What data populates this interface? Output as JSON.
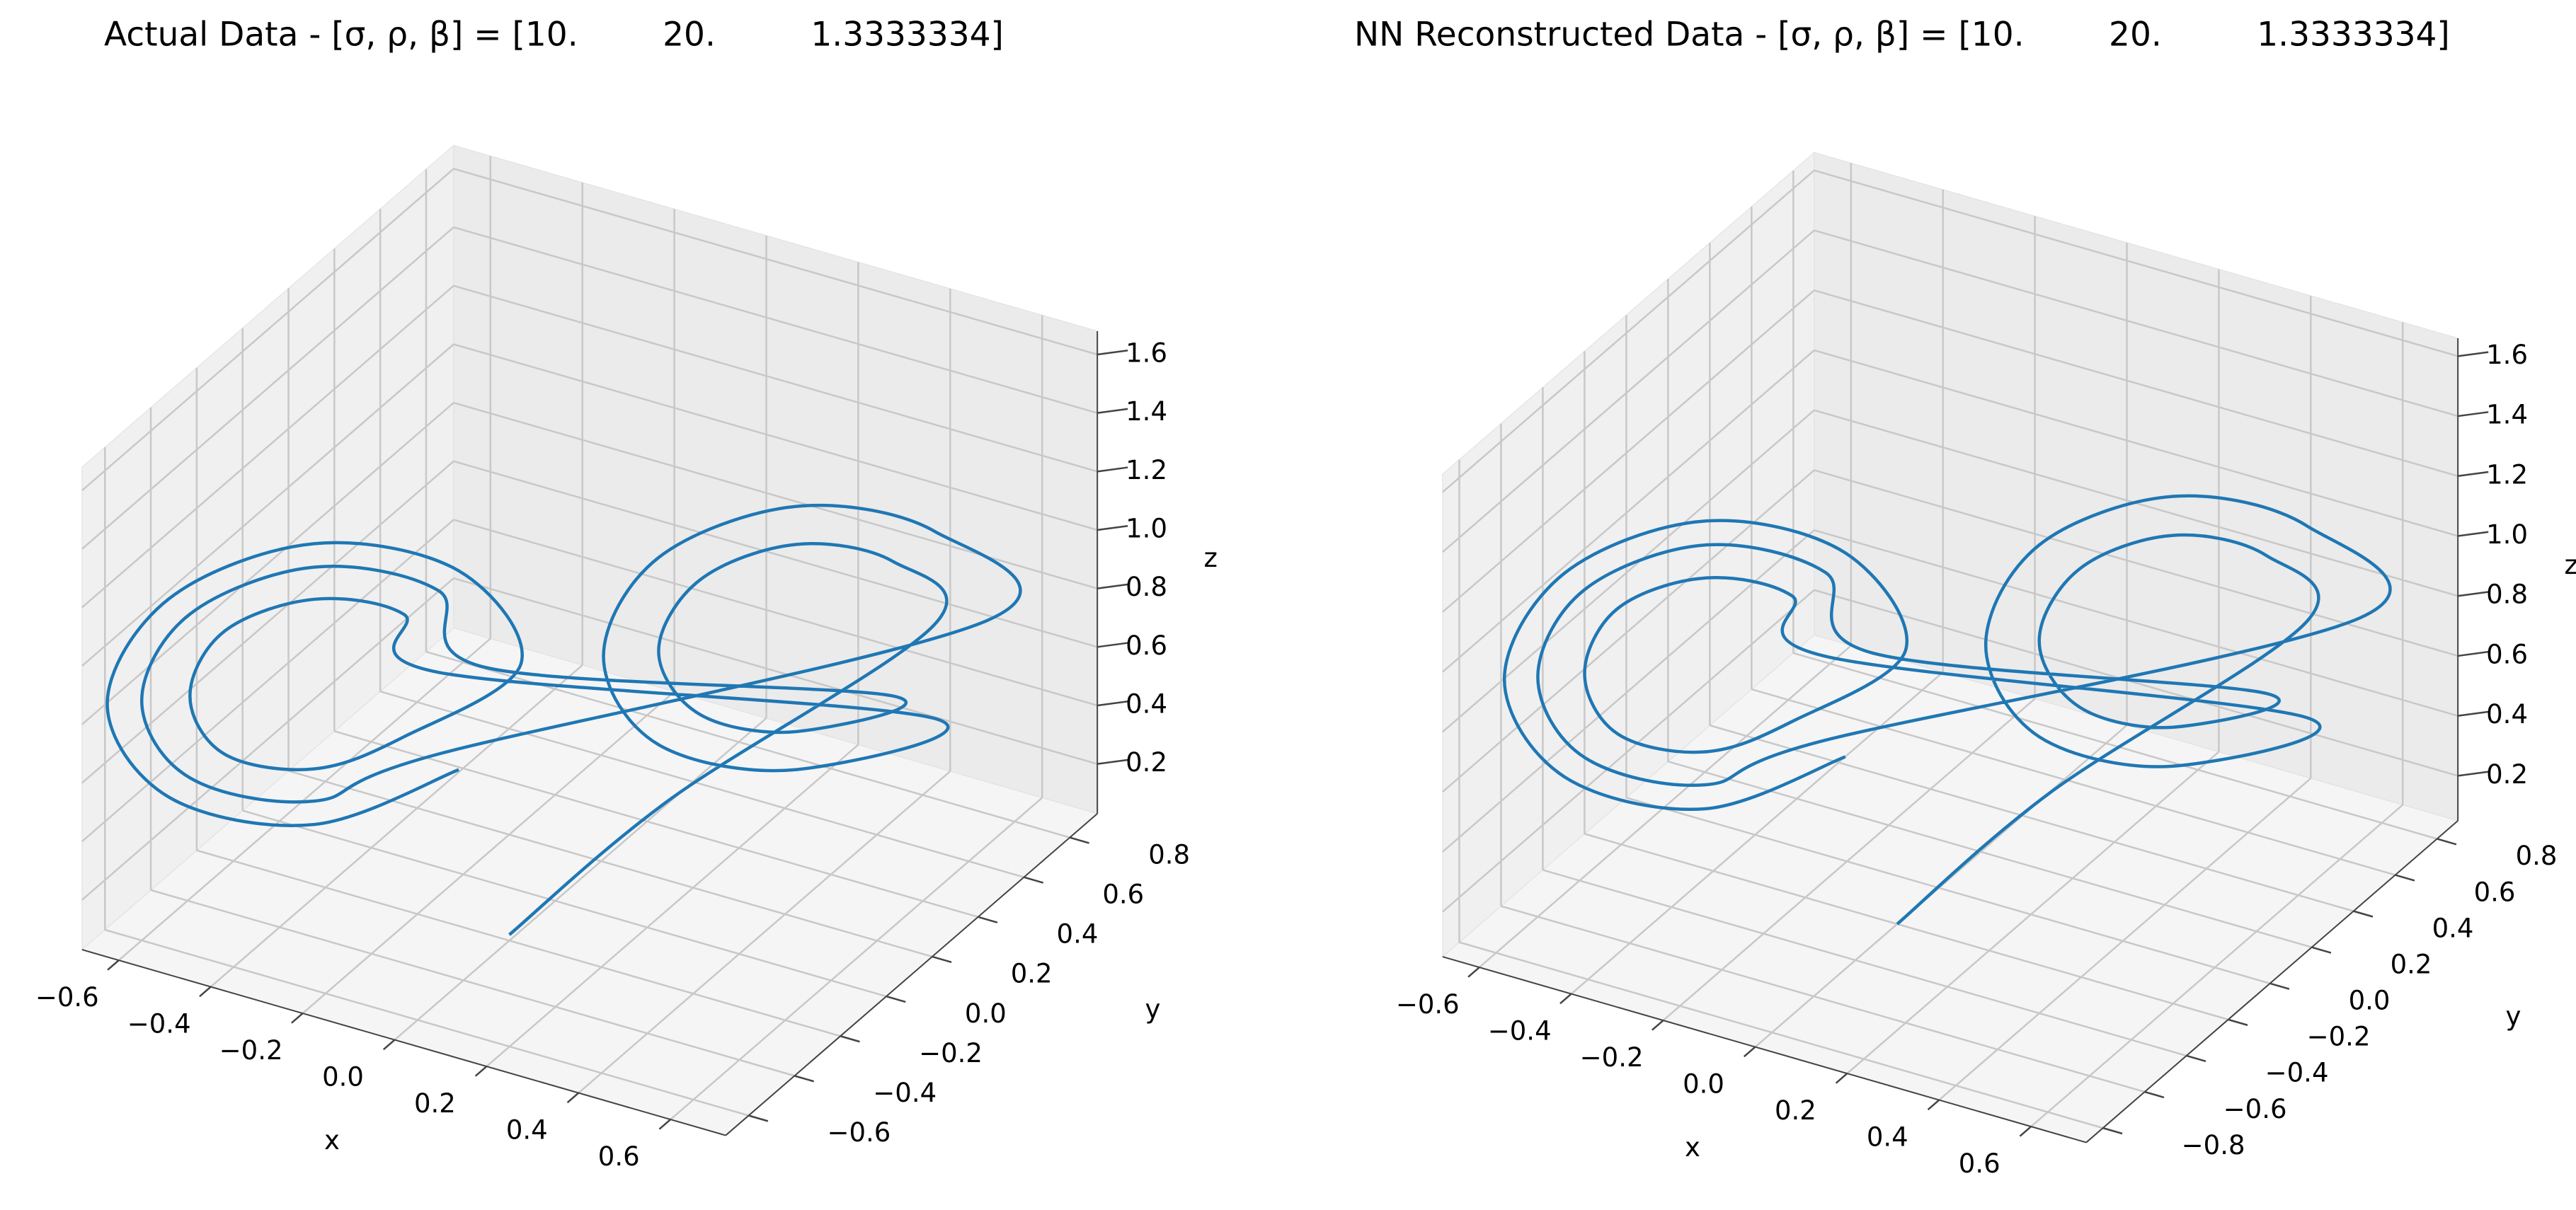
{
  "chart_data": [
    {
      "type": "line3d",
      "title": "Actual Data - [σ, ρ, β] = [10.        20.         1.3333334]",
      "xlabel": "x",
      "ylabel": "y",
      "zlabel": "z",
      "color": "#1f77b4",
      "xlim": [
        -0.68,
        0.72
      ],
      "ylim": [
        -0.7,
        0.92
      ],
      "zlim": [
        0.03,
        1.68
      ],
      "xticks": [
        {
          "value": -0.6,
          "label": "−0.6"
        },
        {
          "value": -0.4,
          "label": "−0.4"
        },
        {
          "value": -0.2,
          "label": "−0.2"
        },
        {
          "value": 0,
          "label": "0.0"
        },
        0.2,
        0.4,
        0.6
      ],
      "yticks": [
        {
          "value": -0.6,
          "label": "−0.6"
        },
        {
          "value": -0.4,
          "label": "−0.4"
        },
        {
          "value": -0.2,
          "label": "−0.2"
        },
        {
          "value": 0,
          "label": "0.0"
        },
        0.2,
        0.4,
        0.6,
        0.8
      ],
      "zticks": [
        0.2,
        0.4,
        0.6,
        0.8,
        {
          "value": 1,
          "label": "1.0"
        },
        1.2,
        1.4,
        1.6
      ],
      "x": [
        0.0,
        0.2,
        0.55,
        0.49,
        0.35,
        0.21,
        0.15,
        0.21,
        0.35,
        0.49,
        -0.1,
        -0.17,
        -0.35,
        -0.53,
        -0.6,
        -0.53,
        -0.35,
        -0.17,
        0.63,
        0.55,
        0.35,
        0.15,
        0.07,
        0.15,
        0.35,
        0.55,
        -0.17,
        -0.22,
        -0.35,
        -0.48,
        -0.53,
        -0.48,
        -0.35,
        -0.22,
        -0.05,
        -0.14,
        -0.35,
        -0.56,
        -0.65,
        -0.56,
        -0.35,
        -0.14
      ],
      "y": [
        -0.2,
        0.1,
        0.55,
        0.49,
        0.35,
        0.21,
        0.15,
        0.21,
        0.35,
        0.49,
        -0.1,
        -0.17,
        -0.35,
        -0.53,
        -0.6,
        -0.53,
        -0.35,
        -0.17,
        0.63,
        0.55,
        0.35,
        0.15,
        0.07,
        0.15,
        0.35,
        0.55,
        -0.17,
        -0.22,
        -0.35,
        -0.48,
        -0.53,
        -0.48,
        -0.35,
        -0.22,
        -0.05,
        -0.14,
        -0.35,
        -0.56,
        -0.65,
        -0.56,
        -0.35,
        -0.14
      ],
      "z": [
        0.05,
        0.4,
        0.85,
        1.08,
        1.17,
        1.08,
        0.85,
        0.62,
        0.53,
        0.62,
        0.85,
        1.13,
        1.25,
        1.13,
        0.85,
        0.57,
        0.45,
        0.57,
        0.85,
        1.17,
        1.3,
        1.17,
        0.85,
        0.53,
        0.4,
        0.53,
        0.85,
        1.06,
        1.14,
        1.06,
        0.85,
        0.64,
        0.56,
        0.64,
        0.85,
        1.19,
        1.33,
        1.19,
        0.85,
        0.51,
        0.37,
        0.51
      ]
    },
    {
      "type": "line3d",
      "title": "NN Reconstructed Data - [σ, ρ, β] = [10.        20.         1.3333334]",
      "xlabel": "x",
      "ylabel": "y",
      "zlabel": "z",
      "color": "#1f77b4",
      "xlim": [
        -0.68,
        0.72
      ],
      "ylim": [
        -0.88,
        0.9
      ],
      "zlim": [
        0.05,
        1.66
      ],
      "xticks": [
        {
          "value": -0.6,
          "label": "−0.6"
        },
        {
          "value": -0.4,
          "label": "−0.4"
        },
        {
          "value": -0.2,
          "label": "−0.2"
        },
        {
          "value": 0,
          "label": "0.0"
        },
        0.2,
        0.4,
        0.6
      ],
      "yticks": [
        {
          "value": -0.8,
          "label": "−0.8"
        },
        {
          "value": -0.6,
          "label": "−0.6"
        },
        {
          "value": -0.4,
          "label": "−0.4"
        },
        {
          "value": -0.2,
          "label": "−0.2"
        },
        {
          "value": 0,
          "label": "0.0"
        },
        0.2,
        0.4,
        0.6,
        0.8
      ],
      "zticks": [
        0.2,
        0.4,
        0.6,
        0.8,
        {
          "value": 1,
          "label": "1.0"
        },
        1.2,
        1.4,
        1.6
      ],
      "x": [
        0.0,
        0.2,
        0.55,
        0.49,
        0.35,
        0.21,
        0.15,
        0.21,
        0.35,
        0.49,
        -0.1,
        -0.17,
        -0.35,
        -0.53,
        -0.6,
        -0.53,
        -0.35,
        -0.17,
        0.63,
        0.55,
        0.35,
        0.15,
        0.07,
        0.15,
        0.35,
        0.55,
        -0.17,
        -0.22,
        -0.35,
        -0.48,
        -0.53,
        -0.48,
        -0.35,
        -0.22,
        -0.05,
        -0.14,
        -0.35,
        -0.56,
        -0.65,
        -0.56,
        -0.35,
        -0.14
      ],
      "y": [
        -0.2,
        0.1,
        0.55,
        0.49,
        0.35,
        0.21,
        0.15,
        0.21,
        0.35,
        0.49,
        -0.1,
        -0.17,
        -0.35,
        -0.53,
        -0.6,
        -0.53,
        -0.35,
        -0.17,
        0.63,
        0.55,
        0.35,
        0.15,
        0.07,
        0.15,
        0.35,
        0.55,
        -0.17,
        -0.22,
        -0.35,
        -0.48,
        -0.53,
        -0.48,
        -0.35,
        -0.22,
        -0.05,
        -0.14,
        -0.35,
        -0.56,
        -0.65,
        -0.56,
        -0.35,
        -0.14
      ],
      "z": [
        0.05,
        0.4,
        0.85,
        1.08,
        1.17,
        1.08,
        0.85,
        0.62,
        0.53,
        0.62,
        0.85,
        1.13,
        1.25,
        1.13,
        0.85,
        0.57,
        0.45,
        0.57,
        0.85,
        1.17,
        1.3,
        1.17,
        0.85,
        0.53,
        0.4,
        0.53,
        0.85,
        1.06,
        1.14,
        1.06,
        0.85,
        0.64,
        0.56,
        0.64,
        0.85,
        1.19,
        1.33,
        1.19,
        0.85,
        0.51,
        0.37,
        0.51
      ]
    }
  ]
}
